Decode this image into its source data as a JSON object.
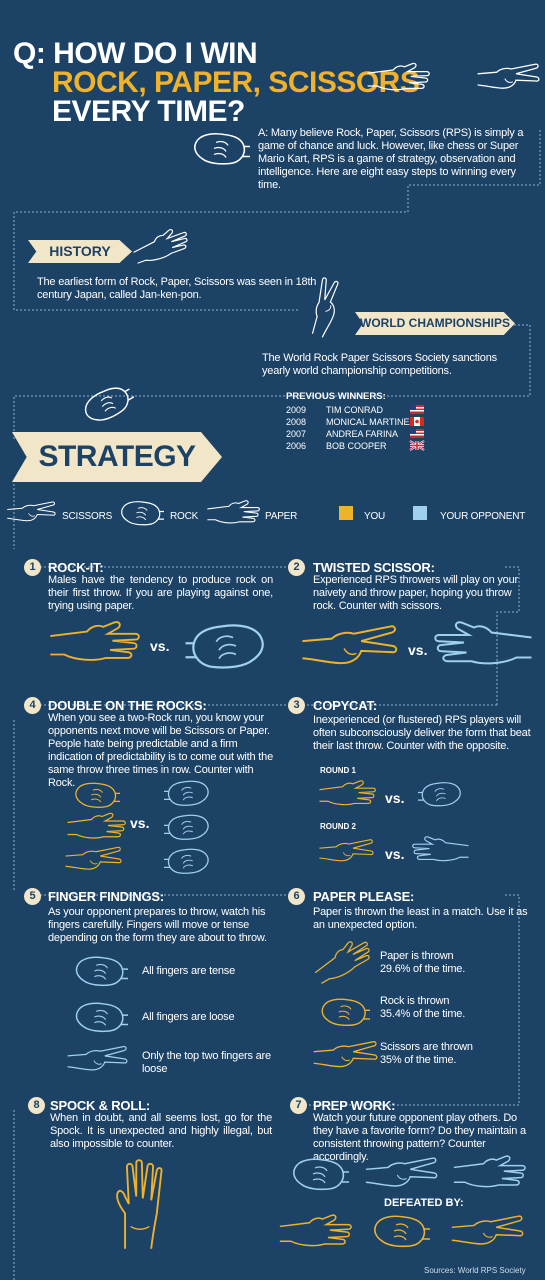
{
  "header": {
    "q_label": "Q:",
    "line1": "HOW DO I WIN",
    "line2": "ROCK, PAPER, SCISSORS",
    "line3": "EVERY TIME?"
  },
  "intro": "A: Many believe Rock, Paper, Scissors (RPS) is simply a game of chance and luck. However, like chess or Super Mario Kart, RPS is a game of strategy, observation and intelligence. Here are eight easy steps to winning every time.",
  "history": {
    "title": "HISTORY",
    "text": "The earliest form of Rock, Paper, Scissors was seen in 18th century Japan, called Jan-ken-pon."
  },
  "championships": {
    "title": "WORLD CHAMPIONSHIPS",
    "text": "The World Rock Paper Scissors Society sanctions yearly world championship competitions.",
    "winners_title": "PREVIOUS WINNERS:",
    "winners": [
      {
        "year": "2009",
        "name": "TIM CONRAD",
        "flag": "us"
      },
      {
        "year": "2008",
        "name": "MONICAL MARTINEZ",
        "flag": "ca"
      },
      {
        "year": "2007",
        "name": "ANDREA FARINA",
        "flag": "us"
      },
      {
        "year": "2006",
        "name": "BOB COOPER",
        "flag": "uk"
      }
    ]
  },
  "strategy": {
    "title": "STRATEGY",
    "legend": {
      "scissors": "SCISSORS",
      "rock": "ROCK",
      "paper": "PAPER",
      "you": "YOU",
      "opponent": "YOUR OPPONENT"
    }
  },
  "steps": {
    "s1": {
      "num": "1",
      "title": "ROCK-IT:",
      "text": "Males have the tendency to produce rock on their first throw. If you are playing against one, trying using paper."
    },
    "s2": {
      "num": "2",
      "title": "TWISTED SCISSOR:",
      "text": "Experienced RPS throwers will play on your naivety and throw paper, hoping you throw rock. Counter with scissors."
    },
    "s3": {
      "num": "3",
      "title": "COPYCAT:",
      "text": "Inexperienced (or flustered) RPS players will often subconsciously deliver the form that beat their last throw. Counter with the opposite.",
      "round1": "ROUND 1",
      "round2": "ROUND 2"
    },
    "s4": {
      "num": "4",
      "title": "DOUBLE ON THE ROCKS:",
      "text": "When you see a two-Rock run, you know your opponents next move will be Scissors or Paper. People hate being predictable and a firm indication of predictability is to come out with the same throw three times in row. Counter with Rock."
    },
    "s5": {
      "num": "5",
      "title": "FINGER FINDINGS:",
      "text": "As your opponent prepares to throw, watch his fingers carefully. Fingers will move or tense depending on the form they are about to throw.",
      "f1": "All fingers are tense",
      "f2": "All fingers are loose",
      "f3": "Only the top two fingers are loose"
    },
    "s6": {
      "num": "6",
      "title": "PAPER PLEASE:",
      "text": "Paper is thrown the least in a match. Use it as an unexpected option.",
      "p1": "Paper is thrown 29.6% of the time.",
      "p2": "Rock is thrown 35.4% of the time.",
      "p3": "Scissors are thrown 35% of the time."
    },
    "s7": {
      "num": "7",
      "title": "PREP WORK:",
      "text": "Watch your future opponent play others. Do they have a favorite form? Do they maintain a consistent throwing pattern? Counter accordingly.",
      "defeated": "DEFEATED BY:"
    },
    "s8": {
      "num": "8",
      "title": "SPOCK & ROLL:",
      "text": "When in doubt, and all seems lost, go for the Spock. It is unexpected and highly illegal, but also impossible to counter."
    }
  },
  "vs": "vs.",
  "source": "Sources: World RPS Society",
  "colors": {
    "background": "#1c4266",
    "you": "#f0b22a",
    "opponent": "#9fd0ef",
    "banner": "#f2e6c8",
    "title_accent": "#f0b22a"
  }
}
